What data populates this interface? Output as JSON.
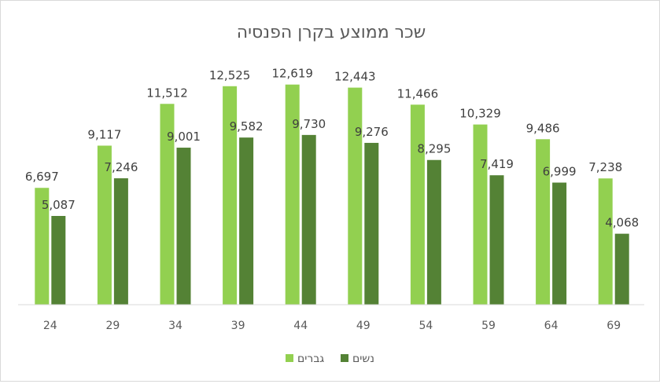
{
  "chart_data": {
    "type": "bar",
    "title": "שכר ממוצע בקרן הפנסיה",
    "xlabel": "",
    "ylabel": "",
    "categories": [
      "24",
      "29",
      "34",
      "39",
      "44",
      "49",
      "54",
      "59",
      "64",
      "69"
    ],
    "series": [
      {
        "name": "גברים",
        "color": "#92D050",
        "values": [
          6697,
          9117,
          11512,
          12525,
          12619,
          12443,
          11466,
          10329,
          9486,
          7238
        ]
      },
      {
        "name": "נשים",
        "color": "#548235",
        "values": [
          5087,
          7246,
          9001,
          9582,
          9730,
          9276,
          8295,
          7419,
          6999,
          4068
        ]
      }
    ],
    "ylim": [
      0,
      14000
    ],
    "grid": false,
    "data_labels": true,
    "legend": "bottom"
  }
}
